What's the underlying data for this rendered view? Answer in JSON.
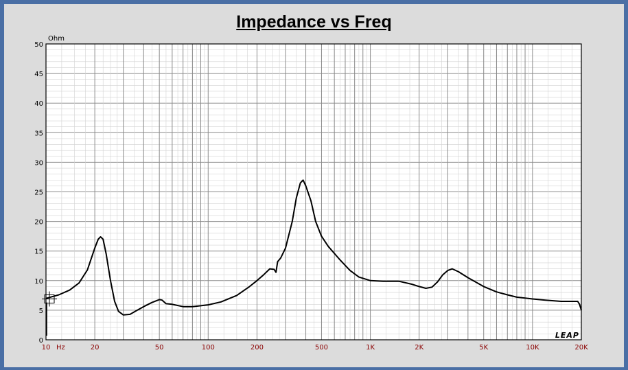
{
  "chart_data": {
    "type": "line",
    "title": "Impedance vs Freq",
    "ylabel": "Ohm",
    "xunit": "Hz",
    "xscale": "log",
    "xlim": [
      10,
      20000
    ],
    "ylim": [
      0,
      50
    ],
    "grid": true,
    "y_ticks": [
      0,
      5,
      10,
      15,
      20,
      25,
      30,
      35,
      40,
      45,
      50
    ],
    "x_ticks": [
      {
        "value": 10,
        "label": "10"
      },
      {
        "value": 20,
        "label": "20"
      },
      {
        "value": 50,
        "label": "50"
      },
      {
        "value": 100,
        "label": "100"
      },
      {
        "value": 200,
        "label": "200"
      },
      {
        "value": 500,
        "label": "500"
      },
      {
        "value": 1000,
        "label": "1K"
      },
      {
        "value": 2000,
        "label": "2K"
      },
      {
        "value": 5000,
        "label": "5K"
      },
      {
        "value": 10000,
        "label": "10K"
      },
      {
        "value": 20000,
        "label": "20K"
      }
    ],
    "watermark": "LEAP",
    "series": [
      {
        "color": "#000000",
        "points": [
          [
            10,
            7.0
          ],
          [
            12,
            7.6
          ],
          [
            14,
            8.4
          ],
          [
            16,
            9.6
          ],
          [
            18,
            11.8
          ],
          [
            20,
            15.5
          ],
          [
            21,
            17.0
          ],
          [
            21.7,
            17.4
          ],
          [
            22.5,
            17.0
          ],
          [
            23.5,
            14.5
          ],
          [
            25,
            10.0
          ],
          [
            26.5,
            6.5
          ],
          [
            28,
            4.8
          ],
          [
            30,
            4.2
          ],
          [
            33,
            4.3
          ],
          [
            36,
            4.9
          ],
          [
            40,
            5.6
          ],
          [
            45,
            6.3
          ],
          [
            50,
            6.8
          ],
          [
            52,
            6.7
          ],
          [
            55,
            6.1
          ],
          [
            60,
            6.0
          ],
          [
            70,
            5.6
          ],
          [
            80,
            5.6
          ],
          [
            100,
            5.9
          ],
          [
            120,
            6.4
          ],
          [
            150,
            7.5
          ],
          [
            180,
            9.0
          ],
          [
            200,
            10.0
          ],
          [
            220,
            11.0
          ],
          [
            240,
            12.0
          ],
          [
            255,
            11.9
          ],
          [
            262,
            11.4
          ],
          [
            268,
            13.2
          ],
          [
            280,
            13.8
          ],
          [
            300,
            15.5
          ],
          [
            330,
            20.0
          ],
          [
            350,
            24.0
          ],
          [
            370,
            26.5
          ],
          [
            385,
            27.0
          ],
          [
            400,
            26.0
          ],
          [
            430,
            23.5
          ],
          [
            460,
            20.0
          ],
          [
            500,
            17.5
          ],
          [
            550,
            15.8
          ],
          [
            650,
            13.5
          ],
          [
            750,
            11.7
          ],
          [
            850,
            10.6
          ],
          [
            1000,
            10.0
          ],
          [
            1200,
            9.9
          ],
          [
            1500,
            9.9
          ],
          [
            1800,
            9.4
          ],
          [
            2000,
            9.0
          ],
          [
            2200,
            8.7
          ],
          [
            2400,
            8.9
          ],
          [
            2600,
            9.8
          ],
          [
            2800,
            11.0
          ],
          [
            3000,
            11.7
          ],
          [
            3200,
            12.0
          ],
          [
            3500,
            11.5
          ],
          [
            4000,
            10.5
          ],
          [
            5000,
            9.0
          ],
          [
            6000,
            8.1
          ],
          [
            7000,
            7.6
          ],
          [
            8000,
            7.2
          ],
          [
            10000,
            6.9
          ],
          [
            12000,
            6.7
          ],
          [
            15000,
            6.5
          ],
          [
            19000,
            6.5
          ],
          [
            19500,
            6.0
          ],
          [
            20000,
            5.0
          ]
        ]
      }
    ]
  },
  "marker": {
    "freq": 10.5,
    "value": 6.9
  }
}
